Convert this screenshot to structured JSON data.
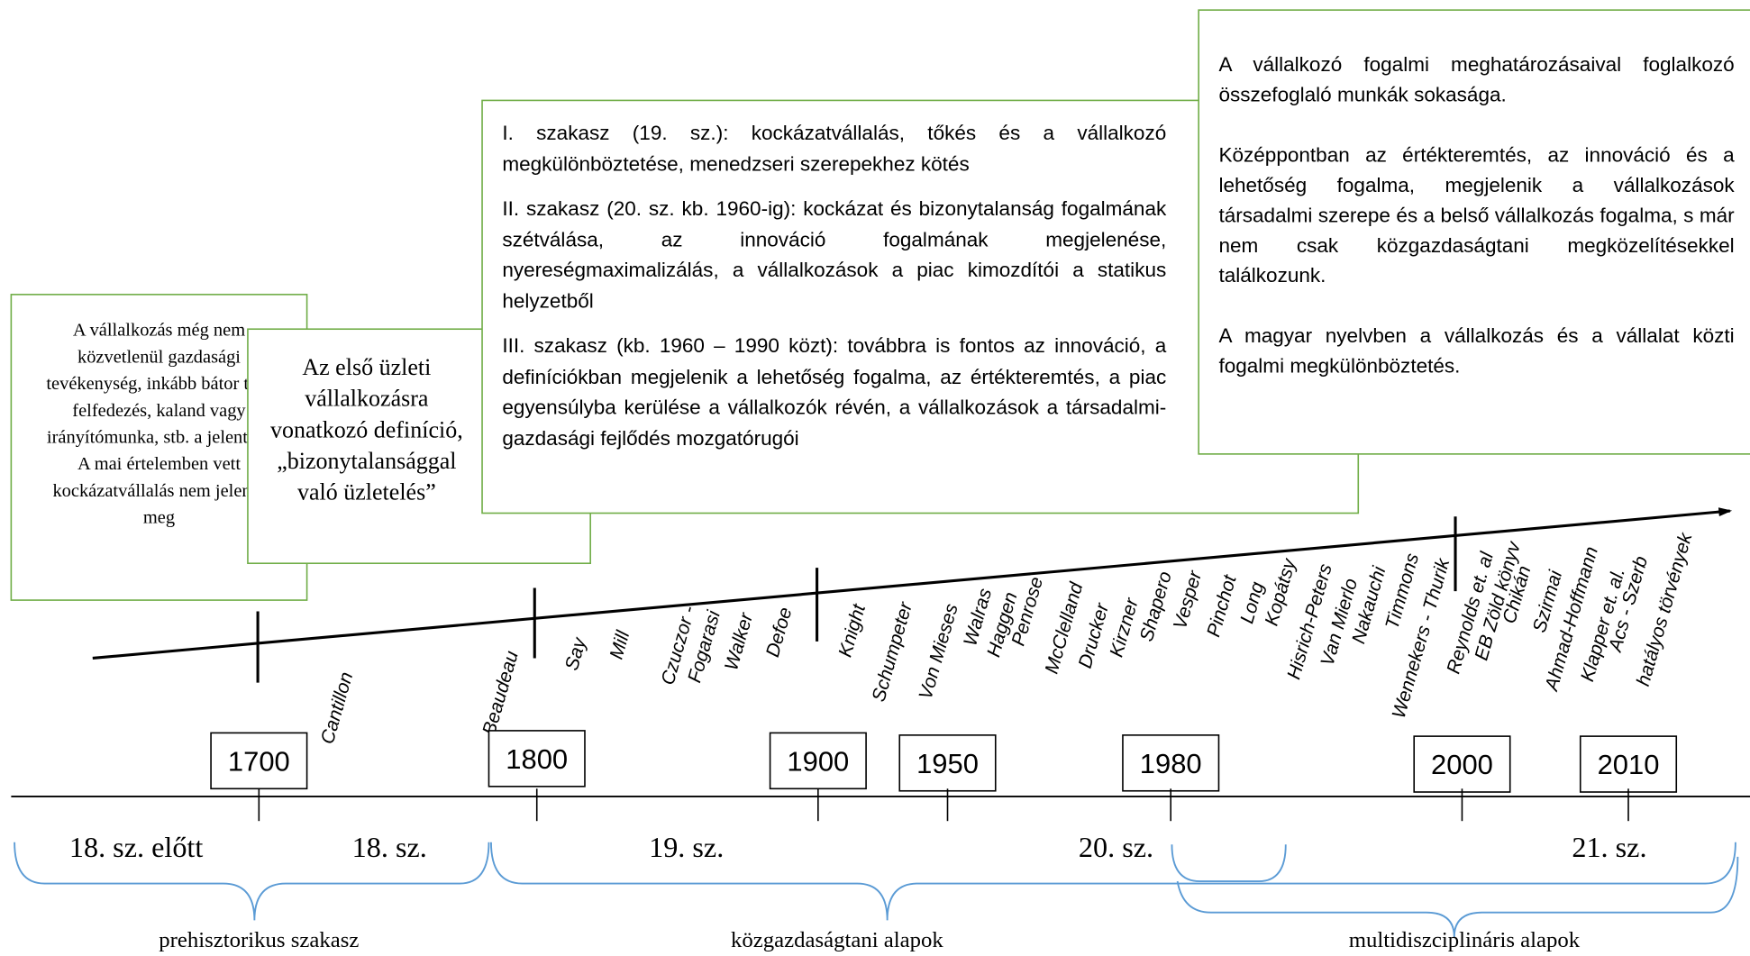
{
  "boxes": [
    {
      "paragraphs": [
        "A vállalkozás még nem közvetlenül gazdasági tevékenység, inkább bátor tett, felfedezés, kaland vagy irányítómunka, stb. a jelentése",
        "A mai értelemben vett kockázatvállalás nem jelenik meg"
      ]
    },
    {
      "paragraphs": [
        "Az első üzleti vállalkozásra vonatkozó definíció, „bizonytalansággal való üzletelés”"
      ]
    },
    {
      "paragraphs": [
        "I. szakasz (19. sz.): kockázatvállalás, tőkés és a vállalkozó megkülönböztetése, menedzseri szerepekhez kötés",
        "II. szakasz (20. sz. kb. 1960-ig): kockázat és bizonytalanság fogalmának szétválása, az innováció fogalmának megjelenése, nyereségmaximalizálás, a vállalkozások a piac kimozdítói a statikus helyzetből",
        "III. szakasz (kb. 1960 – 1990 közt): továbbra is fontos az innováció, a definíciókban megjelenik a lehetőség fogalma, az értékteremtés, a piac egyensúlyba kerülése a vállalkozók révén, a vállalkozások a társadalmi-gazdasági fejlődés mozgatórugói"
      ]
    },
    {
      "paragraphs": [
        "A vállalkozó fogalmi meghatározásaival foglalkozó összefoglaló munkák sokasága.",
        "Középpontban az értékteremtés, az innováció és a lehetőség fogalma, megjelenik a vállalkozások társadalmi szerepe és a belső vállalkozás fogalma, s már nem csak közgazdaságtani megközelítésekkel találkozunk.",
        "A magyar nyelvben a vállalkozás és a vállalat közti fogalmi megkülönböztetés."
      ]
    }
  ],
  "timeline_labels": [
    "Cantillon",
    "Beaudeau",
    "Say",
    "Mill",
    "Czuczor -",
    "Fogarasi",
    "Walker",
    "Defoe",
    "Knight",
    "Schumpeter",
    "Von Mieses",
    "Walras",
    "Haggen",
    "Penrose",
    "McClelland",
    "Drucker",
    "Kirzner",
    "Shapero",
    "Vesper",
    "Pinchot",
    "Long",
    "Kopátsy",
    "Hisrich-Peters",
    "Van Mierlo",
    "Nakauchi",
    "Timmons",
    "Wennekers - Thurik",
    "Reynolds et. al",
    "EB Zöld könyv",
    "Chikán",
    "Szirmai",
    "Ahmad-Hoffmann",
    "Klapper et. al.",
    "Acs - Szerb",
    "hatályos törvények"
  ],
  "years": [
    "1700",
    "1800",
    "1900",
    "1950",
    "1980",
    "2000",
    "2010"
  ],
  "centuries": [
    "18. sz. előtt",
    "18. sz.",
    "19. sz.",
    "20. sz.",
    "21. sz."
  ],
  "phases": [
    "prehisztorikus szakasz",
    "közgazdaságtani alapok",
    "multidiszciplináris alapok"
  ]
}
